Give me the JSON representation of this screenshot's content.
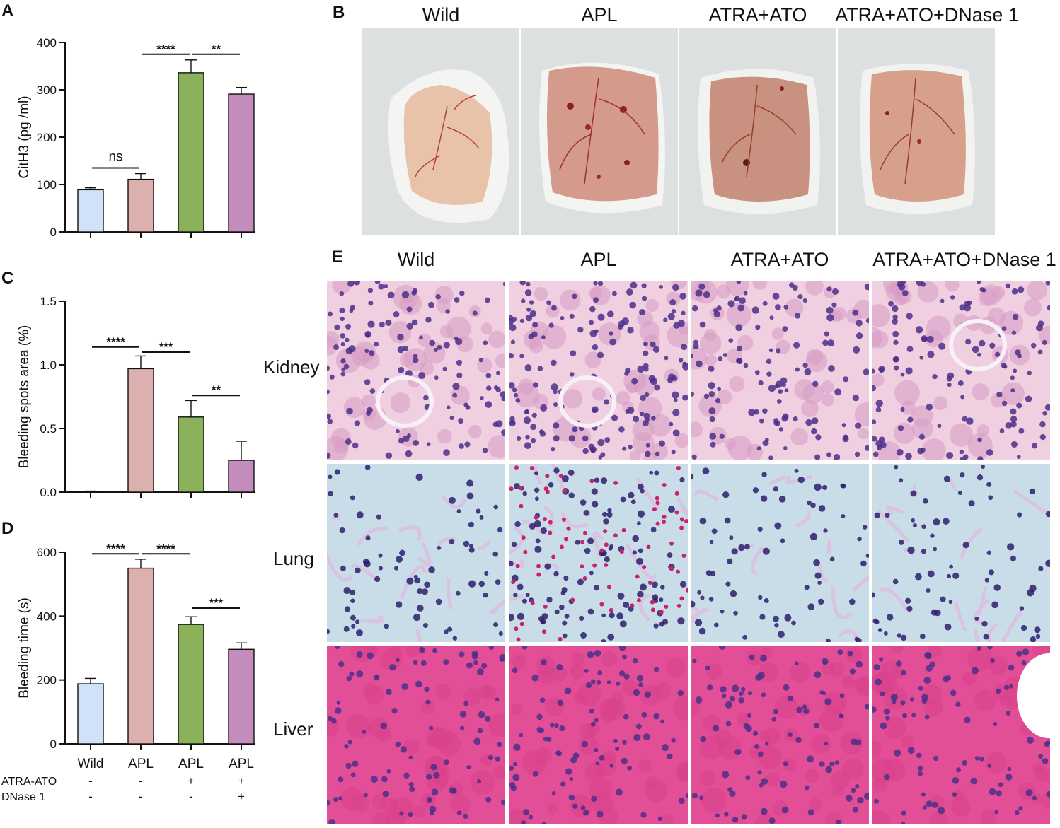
{
  "panels": {
    "A": {
      "letter": "A"
    },
    "B": {
      "letter": "B"
    },
    "C": {
      "letter": "C"
    },
    "D": {
      "letter": "D"
    },
    "E": {
      "letter": "E"
    }
  },
  "group_colors": [
    "#cfe2f7",
    "#dcb0ae",
    "#8bb15a",
    "#c48bbd"
  ],
  "chart_data": [
    {
      "panel": "A",
      "type": "bar",
      "ylabel": "CitH3 (pg /ml)",
      "ylim": [
        0,
        400
      ],
      "yticks": [
        "0",
        "100",
        "200",
        "300",
        "400"
      ],
      "values": [
        89,
        111,
        336,
        291
      ],
      "errors": [
        4,
        12,
        27,
        14
      ],
      "significance": [
        {
          "from": 0,
          "to": 1,
          "label": "ns",
          "y": 135
        },
        {
          "from": 1,
          "to": 2,
          "label": "****",
          "y": 375
        },
        {
          "from": 2,
          "to": 3,
          "label": "**",
          "y": 375
        }
      ]
    },
    {
      "panel": "C",
      "type": "bar",
      "ylabel": "Bleeding spots area (%)",
      "ylim": [
        0,
        1.5
      ],
      "yticks": [
        "0.0",
        "0.5",
        "1.0",
        "1.5"
      ],
      "values": [
        0.005,
        0.97,
        0.59,
        0.25
      ],
      "errors": [
        0.003,
        0.1,
        0.13,
        0.15
      ],
      "significance": [
        {
          "from": 0,
          "to": 1,
          "label": "****",
          "y": 1.14
        },
        {
          "from": 1,
          "to": 2,
          "label": "***",
          "y": 1.1
        },
        {
          "from": 2,
          "to": 3,
          "label": "**",
          "y": 0.76
        }
      ]
    },
    {
      "panel": "D",
      "type": "bar",
      "ylabel": "Bleeding time (s)",
      "ylim": [
        0,
        600
      ],
      "yticks": [
        "0",
        "200",
        "400",
        "600"
      ],
      "categories": [
        "Wild",
        "APL",
        "APL",
        "APL"
      ],
      "values": [
        188,
        550,
        374,
        296
      ],
      "errors": [
        17,
        28,
        24,
        20
      ],
      "significance": [
        {
          "from": 0,
          "to": 1,
          "label": "****",
          "y": 595
        },
        {
          "from": 1,
          "to": 2,
          "label": "****",
          "y": 595
        },
        {
          "from": 2,
          "to": 3,
          "label": "***",
          "y": 425
        }
      ],
      "treatment_rows": [
        {
          "label": "ATRA-ATO",
          "marks": [
            "-",
            "-",
            "+",
            "+"
          ]
        },
        {
          "label": "DNase 1",
          "marks": [
            "-",
            "-",
            "-",
            "+"
          ]
        }
      ]
    }
  ],
  "photo_columns": [
    "Wild",
    "APL",
    "ATRA+ATO",
    "ATRA+ATO+DNase 1"
  ],
  "histology": {
    "columns": [
      "Wild",
      "APL",
      "ATRA+ATO",
      "ATRA+ATO+DNase 1"
    ],
    "rows": [
      "Kidney",
      "Lung",
      "Liver"
    ]
  }
}
